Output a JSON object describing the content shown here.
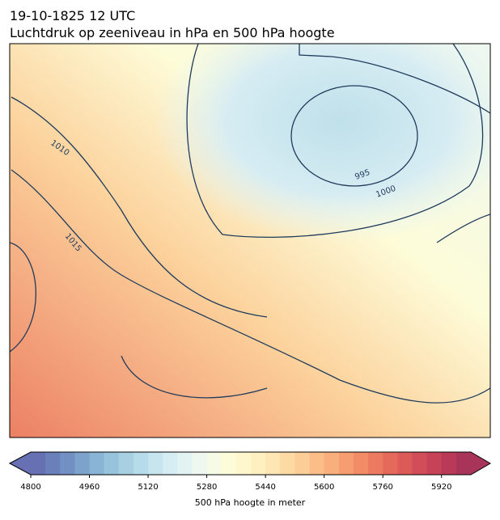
{
  "header": {
    "title": "19-10-1825 12 UTC",
    "subtitle": "Luchtdruk op zeeniveau in hPa en 500 hPa hoogte"
  },
  "map": {
    "contour_labels": [
      "1010",
      "1015",
      "995",
      "1000"
    ]
  },
  "colorbar": {
    "label": "500 hPa hoogte in meter",
    "lim": [
      4800,
      6000
    ],
    "ticks": [
      4800,
      4960,
      5120,
      5280,
      5440,
      5600,
      5760,
      5920
    ],
    "colors": [
      "#6670b2",
      "#6a80ba",
      "#7290c3",
      "#7da3cc",
      "#8ab4d5",
      "#98c3dc",
      "#a7d0e3",
      "#b6dbea",
      "#c6e5ef",
      "#d5edf3",
      "#e3f3f4",
      "#eef8f0",
      "#f6fbe6",
      "#fdfcd9",
      "#fef6cc",
      "#fef0c0",
      "#fde6b3",
      "#fddaa4",
      "#fccd96",
      "#fbbe88",
      "#f9af7c",
      "#f69e71",
      "#f28c67",
      "#ec7a60",
      "#e5695b",
      "#dc5b58",
      "#d14d57",
      "#c54257",
      "#b83a58",
      "#a9345a"
    ]
  }
}
